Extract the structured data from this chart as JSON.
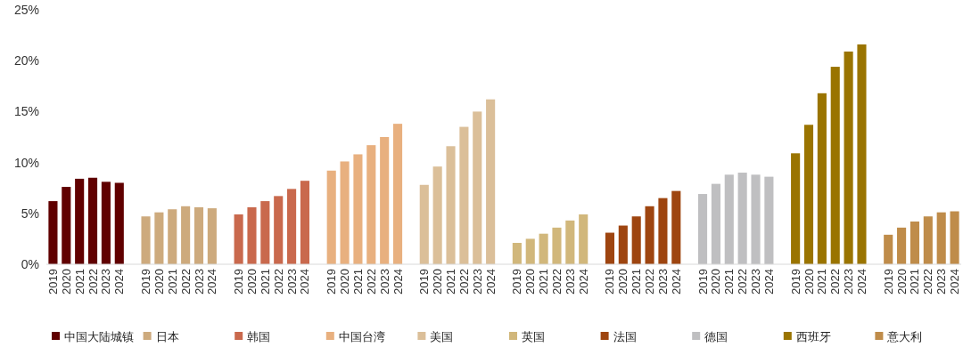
{
  "chart_data": {
    "type": "bar",
    "categories": [
      "2019",
      "2020",
      "2021",
      "2022",
      "2023",
      "2024",
      null,
      "2019",
      "2020",
      "2021",
      "2022",
      "2023",
      "2024",
      null,
      "2019",
      "2020",
      "2021",
      "2022",
      "2023",
      "2024",
      null,
      "2019",
      "2020",
      "2021",
      "2022",
      "2023",
      "2024",
      null,
      "2019",
      "2020",
      "2021",
      "2022",
      "2023",
      "2024",
      null,
      "2019",
      "2020",
      "2021",
      "2022",
      "2023",
      "2024",
      null,
      "2019",
      "2020",
      "2021",
      "2022",
      "2023",
      "2024",
      null,
      "2019",
      "2020",
      "2021",
      "2022",
      "2023",
      "2024",
      null,
      "2019",
      "2020",
      "2021",
      "2022",
      "2023",
      "2024",
      null,
      "2019",
      "2020",
      "2021",
      "2022",
      "2023",
      "2024"
    ],
    "series": [
      {
        "name": "中国大陆城镇",
        "color": "#600000",
        "values": [
          6.2,
          7.6,
          8.4,
          8.5,
          8.1,
          8.0,
          null,
          null,
          null,
          null,
          null,
          null,
          null,
          null,
          null,
          null,
          null,
          null,
          null,
          null,
          null,
          null,
          null,
          null,
          null,
          null,
          null,
          null,
          null,
          null,
          null,
          null,
          null,
          null,
          null,
          null,
          null,
          null,
          null,
          null,
          null,
          null,
          null,
          null,
          null,
          null,
          null,
          null,
          null,
          null,
          null,
          null,
          null,
          null,
          null,
          null,
          null,
          null,
          null,
          null,
          null,
          null,
          null,
          null,
          null,
          null,
          null,
          null,
          null
        ]
      },
      {
        "name": "日本",
        "color": "#cdaa7d",
        "values": [
          null,
          null,
          null,
          null,
          null,
          null,
          null,
          4.7,
          5.1,
          5.4,
          5.7,
          5.6,
          5.5,
          null,
          null,
          null,
          null,
          null,
          null,
          null,
          null,
          null,
          null,
          null,
          null,
          null,
          null,
          null,
          null,
          null,
          null,
          null,
          null,
          null,
          null,
          null,
          null,
          null,
          null,
          null,
          null,
          null,
          null,
          null,
          null,
          null,
          null,
          null,
          null,
          null,
          null,
          null,
          null,
          null,
          null,
          null,
          null,
          null,
          null,
          null,
          null,
          null,
          null,
          null,
          null,
          null,
          null,
          null,
          null
        ]
      },
      {
        "name": "韩国",
        "color": "#c9694d",
        "values": [
          null,
          null,
          null,
          null,
          null,
          null,
          null,
          null,
          null,
          null,
          null,
          null,
          null,
          null,
          4.9,
          5.6,
          6.2,
          6.7,
          7.4,
          8.2,
          null,
          null,
          null,
          null,
          null,
          null,
          null,
          null,
          null,
          null,
          null,
          null,
          null,
          null,
          null,
          null,
          null,
          null,
          null,
          null,
          null,
          null,
          null,
          null,
          null,
          null,
          null,
          null,
          null,
          null,
          null,
          null,
          null,
          null,
          null,
          null,
          null,
          null,
          null,
          null,
          null,
          null,
          null,
          null,
          null,
          null,
          null,
          null,
          null
        ]
      },
      {
        "name": "中国台湾",
        "color": "#e8b07f",
        "values": [
          null,
          null,
          null,
          null,
          null,
          null,
          null,
          null,
          null,
          null,
          null,
          null,
          null,
          null,
          null,
          null,
          null,
          null,
          null,
          null,
          null,
          9.2,
          10.1,
          10.8,
          11.7,
          12.5,
          13.8,
          null,
          null,
          null,
          null,
          null,
          null,
          null,
          null,
          null,
          null,
          null,
          null,
          null,
          null,
          null,
          null,
          null,
          null,
          null,
          null,
          null,
          null,
          null,
          null,
          null,
          null,
          null,
          null,
          null,
          null,
          null,
          null,
          null,
          null,
          null,
          null,
          null,
          null,
          null,
          null,
          null,
          null
        ]
      },
      {
        "name": "美国",
        "color": "#dbbf99",
        "values": [
          null,
          null,
          null,
          null,
          null,
          null,
          null,
          null,
          null,
          null,
          null,
          null,
          null,
          null,
          null,
          null,
          null,
          null,
          null,
          null,
          null,
          null,
          null,
          null,
          null,
          null,
          null,
          null,
          7.8,
          9.6,
          11.6,
          13.5,
          15.0,
          16.2,
          null,
          null,
          null,
          null,
          null,
          null,
          null,
          null,
          null,
          null,
          null,
          null,
          null,
          null,
          null,
          null,
          null,
          null,
          null,
          null,
          null,
          null,
          null,
          null,
          null,
          null,
          null,
          null,
          null,
          null,
          null,
          null,
          null,
          null,
          null
        ]
      },
      {
        "name": "英国",
        "color": "#d1b77b",
        "values": [
          null,
          null,
          null,
          null,
          null,
          null,
          null,
          null,
          null,
          null,
          null,
          null,
          null,
          null,
          null,
          null,
          null,
          null,
          null,
          null,
          null,
          null,
          null,
          null,
          null,
          null,
          null,
          null,
          null,
          null,
          null,
          null,
          null,
          null,
          null,
          2.1,
          2.5,
          3.0,
          3.6,
          4.3,
          4.9,
          null,
          null,
          null,
          null,
          null,
          null,
          null,
          null,
          null,
          null,
          null,
          null,
          null,
          null,
          null,
          null,
          null,
          null,
          null,
          null,
          null,
          null,
          null,
          null,
          null,
          null,
          null,
          null
        ]
      },
      {
        "name": "法国",
        "color": "#9e4510",
        "values": [
          null,
          null,
          null,
          null,
          null,
          null,
          null,
          null,
          null,
          null,
          null,
          null,
          null,
          null,
          null,
          null,
          null,
          null,
          null,
          null,
          null,
          null,
          null,
          null,
          null,
          null,
          null,
          null,
          null,
          null,
          null,
          null,
          null,
          null,
          null,
          null,
          null,
          null,
          null,
          null,
          null,
          null,
          3.1,
          3.8,
          4.7,
          5.7,
          6.5,
          7.2,
          null,
          null,
          null,
          null,
          null,
          null,
          null,
          null,
          null,
          null,
          null,
          null,
          null,
          null,
          null,
          null,
          null,
          null,
          null,
          null,
          null
        ]
      },
      {
        "name": "德国",
        "color": "#bfbfc1",
        "values": [
          null,
          null,
          null,
          null,
          null,
          null,
          null,
          null,
          null,
          null,
          null,
          null,
          null,
          null,
          null,
          null,
          null,
          null,
          null,
          null,
          null,
          null,
          null,
          null,
          null,
          null,
          null,
          null,
          null,
          null,
          null,
          null,
          null,
          null,
          null,
          null,
          null,
          null,
          null,
          null,
          null,
          null,
          null,
          null,
          null,
          null,
          null,
          null,
          null,
          6.9,
          7.9,
          8.8,
          9.0,
          8.8,
          8.6,
          null,
          null,
          null,
          null,
          null,
          null,
          null,
          null,
          null,
          null,
          null,
          null,
          null,
          null
        ]
      },
      {
        "name": "西班牙",
        "color": "#9a7400",
        "values": [
          null,
          null,
          null,
          null,
          null,
          null,
          null,
          null,
          null,
          null,
          null,
          null,
          null,
          null,
          null,
          null,
          null,
          null,
          null,
          null,
          null,
          null,
          null,
          null,
          null,
          null,
          null,
          null,
          null,
          null,
          null,
          null,
          null,
          null,
          null,
          null,
          null,
          null,
          null,
          null,
          null,
          null,
          null,
          null,
          null,
          null,
          null,
          null,
          null,
          null,
          null,
          null,
          null,
          null,
          null,
          null,
          10.9,
          13.7,
          16.8,
          19.4,
          20.9,
          21.6,
          null,
          null,
          null,
          null,
          null,
          null,
          null
        ]
      },
      {
        "name": "意大利",
        "color": "#bf8c4a",
        "values": [
          null,
          null,
          null,
          null,
          null,
          null,
          null,
          null,
          null,
          null,
          null,
          null,
          null,
          null,
          null,
          null,
          null,
          null,
          null,
          null,
          null,
          null,
          null,
          null,
          null,
          null,
          null,
          null,
          null,
          null,
          null,
          null,
          null,
          null,
          null,
          null,
          null,
          null,
          null,
          null,
          null,
          null,
          null,
          null,
          null,
          null,
          null,
          null,
          null,
          null,
          null,
          null,
          null,
          null,
          null,
          null,
          null,
          null,
          null,
          null,
          null,
          null,
          null,
          2.9,
          3.6,
          4.2,
          4.7,
          5.1,
          5.2
        ]
      }
    ],
    "ylim": [
      0,
      25
    ],
    "yticks": [
      {
        "value": 0,
        "label": "0%"
      },
      {
        "value": 5,
        "label": "5%"
      },
      {
        "value": 10,
        "label": "10%"
      },
      {
        "value": 15,
        "label": "15%"
      },
      {
        "value": 20,
        "label": "20%"
      },
      {
        "value": 25,
        "label": "25%"
      }
    ],
    "legend": "bottom"
  }
}
